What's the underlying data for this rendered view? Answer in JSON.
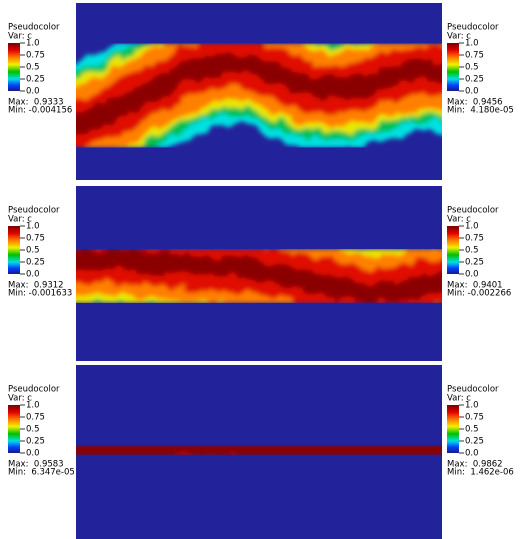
{
  "panels": [
    {
      "left": {
        "title": "Pseudocolor",
        "variable": "Var: c",
        "ticks": [
          "1.0",
          "0.75",
          "0.5",
          "0.25",
          "0.0"
        ],
        "max": "Max:  0.9333",
        "min": "Min: -0.004156"
      },
      "right": {
        "title": "Pseudocolor",
        "variable": "Var: c",
        "ticks": [
          "1.0",
          "0.75",
          "0.5",
          "0.25",
          "0.0"
        ],
        "max": "Max:  0.9456",
        "min": "Min:  4.180e-05"
      }
    },
    {
      "left": {
        "title": "Pseudocolor",
        "variable": "Var: c",
        "ticks": [
          "1.0",
          "0.75",
          "0.5",
          "0.25",
          "0.0"
        ],
        "max": "Max:  0.9312",
        "min": "Min: -0.001633"
      },
      "right": {
        "title": "Pseudocolor",
        "variable": "Var: c",
        "ticks": [
          "1.0",
          "0.75",
          "0.5",
          "0.25",
          "0.0"
        ],
        "max": "Max:  0.9401",
        "min": "Min: -0.002266"
      }
    },
    {
      "left": {
        "title": "Pseudocolor",
        "variable": "Var: c",
        "ticks": [
          "1.0",
          "0.75",
          "0.5",
          "0.25",
          "0.0"
        ],
        "max": "Max:  0.9583",
        "min": "Min:  6.347e-05"
      },
      "right": {
        "title": "Pseudocolor",
        "variable": "Var: c",
        "ticks": [
          "1.0",
          "0.75",
          "0.5",
          "0.25",
          "0.0"
        ],
        "max": "Max:  0.9862",
        "min": "Min:  1.462e-06"
      }
    }
  ]
}
